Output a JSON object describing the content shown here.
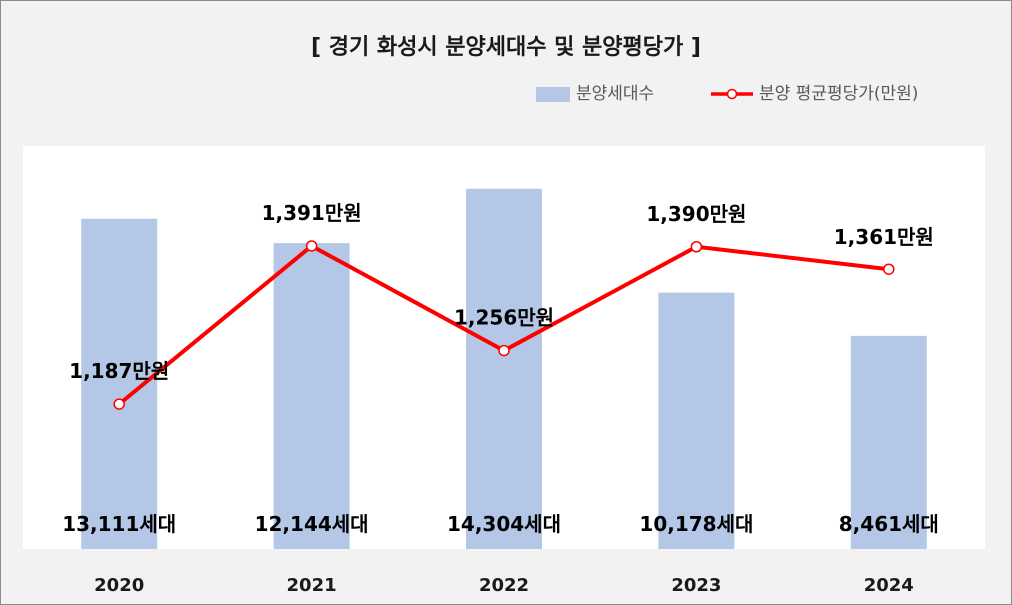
{
  "chart_data": {
    "type": "bar",
    "title": "[ 경기 화성시 분양세대수 및 분양평당가 ]",
    "categories": [
      "2020",
      "2021",
      "2022",
      "2023",
      "2024"
    ],
    "series": [
      {
        "name": "분양세대수",
        "type": "bar",
        "axis": "left",
        "values": [
          13111,
          12144,
          14304,
          10178,
          8461
        ],
        "labels": [
          "13,111세대",
          "12,144세대",
          "14,304세대",
          "10,178세대",
          "8,461세대"
        ],
        "color": "#b4c7e7"
      },
      {
        "name": "분양 평균평당가(만원)",
        "type": "line",
        "axis": "right",
        "values": [
          1187,
          1391,
          1256,
          1390,
          1361
        ],
        "labels": [
          "1,187만원",
          "1,391만원",
          "1,256만원",
          "1,390만원",
          "1,361만원"
        ],
        "color": "#ff0000"
      }
    ],
    "xlabel": "",
    "ylabel": "",
    "grid": false,
    "legend": "top-right"
  }
}
